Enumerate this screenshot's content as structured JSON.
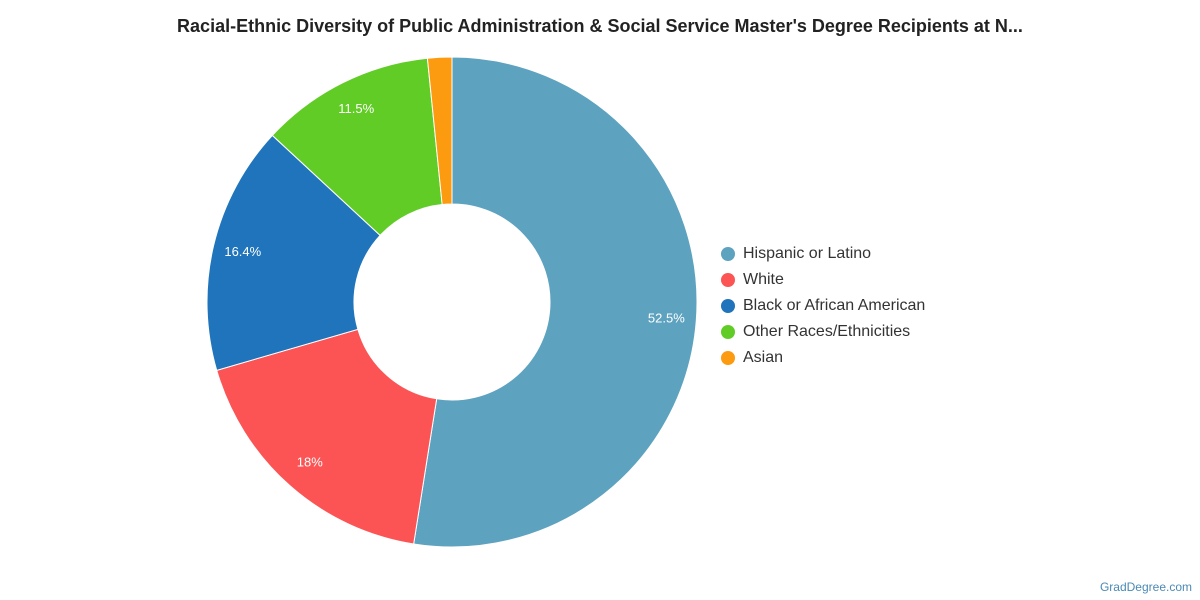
{
  "chart_data": {
    "type": "pie",
    "title": "Racial-Ethnic Diversity of Public Administration & Social Service Master's Degree Recipients at N...",
    "donut": true,
    "legend_position": "right",
    "slices": [
      {
        "label": "Hispanic or Latino",
        "value": 52.5,
        "value_label": "52.5%",
        "color": "#5da2bf"
      },
      {
        "label": "White",
        "value": 18,
        "value_label": "18%",
        "color": "#fc5454"
      },
      {
        "label": "Black or African American",
        "value": 16.4,
        "value_label": "16.4%",
        "color": "#1f74bb"
      },
      {
        "label": "Other Races/Ethnicities",
        "value": 11.5,
        "value_label": "11.5%",
        "color": "#62cc27"
      },
      {
        "label": "Asian",
        "value": 1.6,
        "value_label": "",
        "color": "#fc9a10"
      }
    ]
  },
  "footer": {
    "credit": "GradDegree.com"
  }
}
